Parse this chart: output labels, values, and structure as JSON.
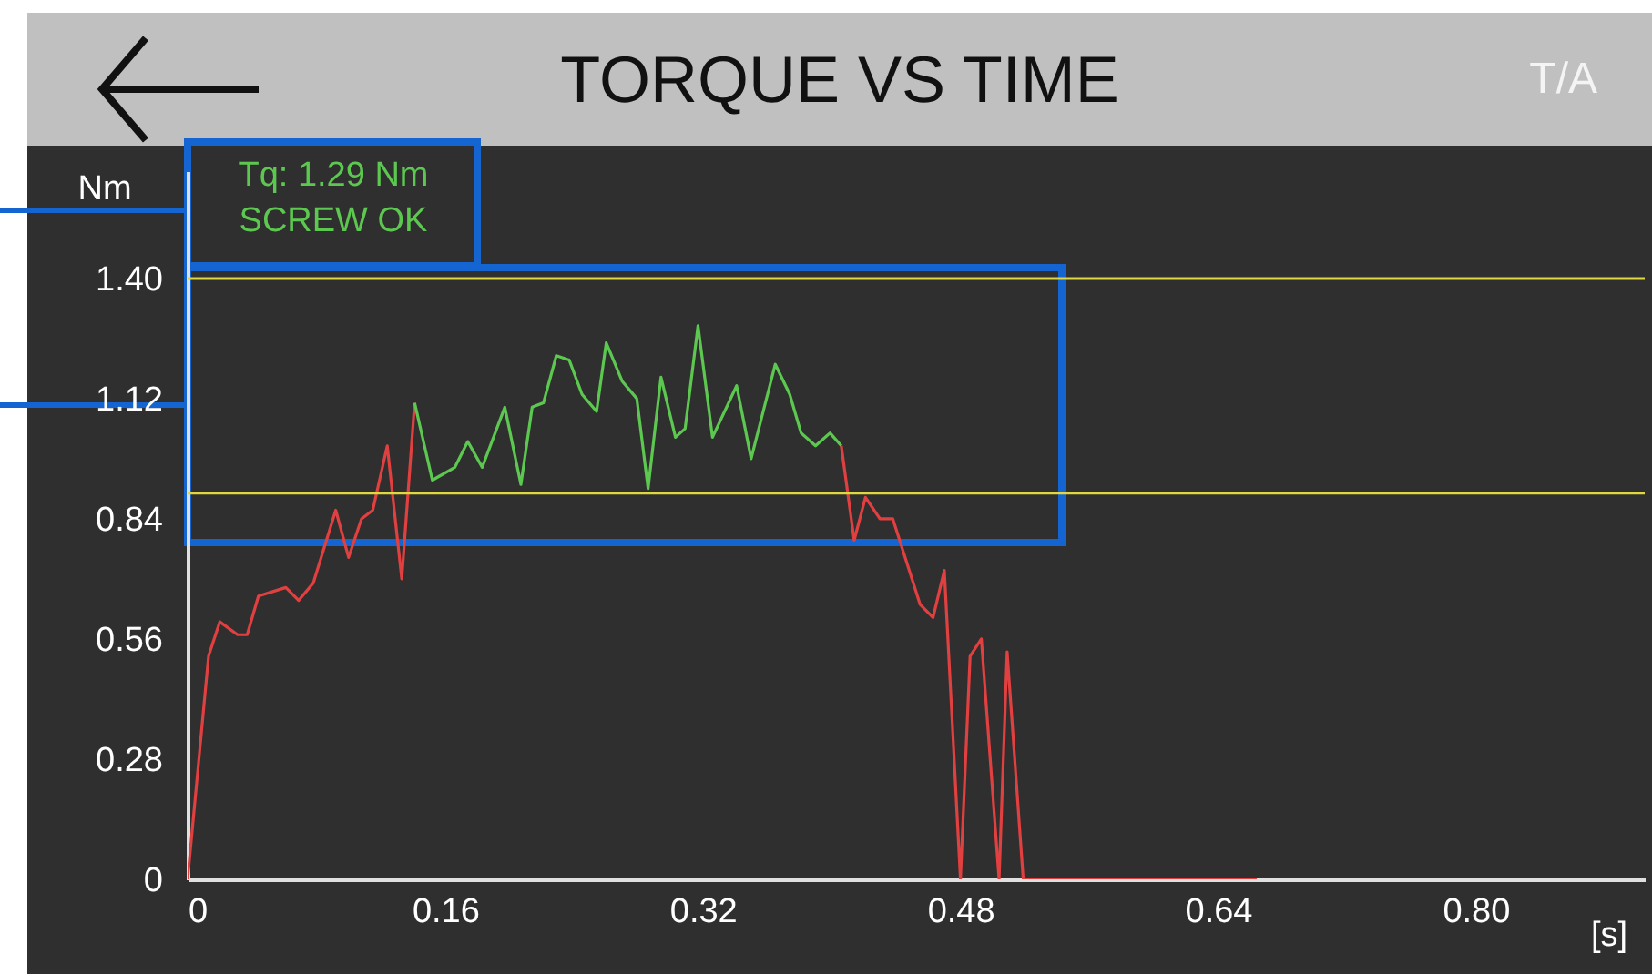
{
  "chart_data": {
    "type": "line",
    "title": "TORQUE VS TIME",
    "xlabel": "[s]",
    "ylabel": "Nm",
    "annotations": [
      "T/A",
      "Tq: 1.29 Nm",
      "SCREW OK"
    ],
    "xlim": [
      0,
      0.905
    ],
    "ylim": [
      0,
      1.65
    ],
    "xticks": [
      0,
      0.16,
      0.32,
      0.48,
      0.64,
      {
        "value": 0.8,
        "label": "0.80"
      }
    ],
    "yticks": [
      0,
      0.28,
      0.56,
      0.84,
      1.12,
      {
        "value": 1.4,
        "label": "1.40"
      }
    ],
    "series": [
      {
        "color": "#e04040",
        "x": [
          0,
          0.013,
          0.02,
          0.031,
          0.037,
          0.044,
          0.061,
          0.069,
          0.078,
          0.092,
          0.1,
          0.108,
          0.115,
          0.124,
          0.133,
          0.141
        ],
        "values": [
          0,
          0.52,
          0.6,
          0.57,
          0.57,
          0.66,
          0.68,
          0.65,
          0.69,
          0.86,
          0.75,
          0.84,
          0.86,
          1.01,
          0.7,
          1.11
        ]
      },
      {
        "color": "#5cc850",
        "x": [
          0.141,
          0.152,
          0.166,
          0.174,
          0.183,
          0.197,
          0.207,
          0.214,
          0.221,
          0.229,
          0.237,
          0.245,
          0.254,
          0.26,
          0.27,
          0.279,
          0.286,
          0.294,
          0.303,
          0.309,
          0.317,
          0.326,
          0.341,
          0.35,
          0.365,
          0.374,
          0.381,
          0.39,
          0.399,
          0.406
        ],
        "values": [
          1.11,
          0.93,
          0.96,
          1.02,
          0.96,
          1.1,
          0.92,
          1.1,
          1.11,
          1.22,
          1.21,
          1.13,
          1.09,
          1.25,
          1.16,
          1.12,
          0.91,
          1.17,
          1.03,
          1.05,
          1.29,
          1.03,
          1.15,
          0.98,
          1.2,
          1.13,
          1.04,
          1.01,
          1.04,
          1.01
        ]
      },
      {
        "color": "#e04040",
        "x": [
          0.406,
          0.414,
          0.421,
          0.43,
          0.438,
          0.455,
          0.463,
          0.47,
          0.48,
          0.486,
          0.493,
          0.504,
          0.509,
          0.519,
          0.664
        ],
        "values": [
          1.01,
          0.79,
          0.89,
          0.84,
          0.84,
          0.64,
          0.61,
          0.72,
          0,
          0.52,
          0.56,
          0,
          0.53,
          0,
          0
        ]
      }
    ],
    "ref_lines": [
      {
        "axis": "y",
        "value": 1.4,
        "color": "#e0d840"
      },
      {
        "axis": "y",
        "value": 0.9,
        "color": "#e0d840"
      }
    ]
  }
}
